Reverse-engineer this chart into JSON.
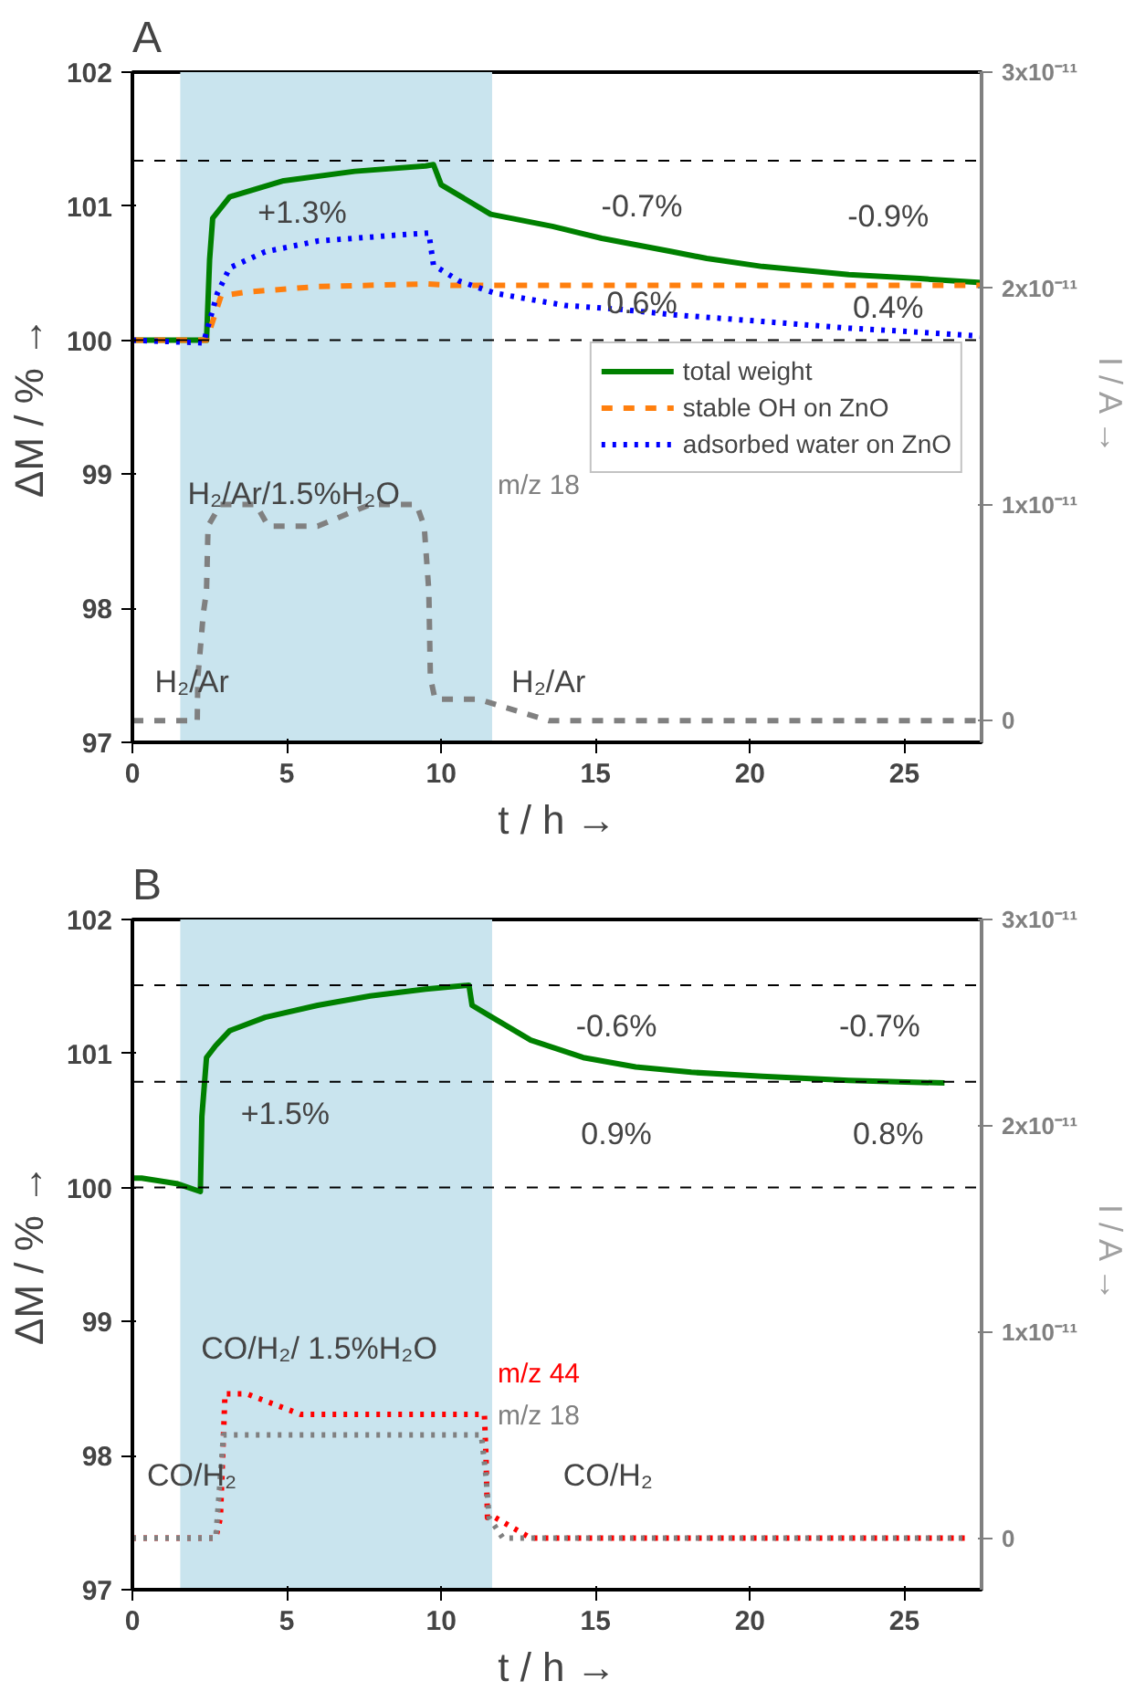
{
  "chart_data": [
    {
      "type": "line",
      "title": "A",
      "xlabel": "t / h →",
      "ylabel": "ΔM / % →",
      "y2label": "I / A →",
      "xlim": [
        0,
        27.5
      ],
      "xticks": [
        0,
        5,
        10,
        15,
        20,
        25
      ],
      "ylim": [
        97,
        102
      ],
      "yticks": [
        97,
        98,
        99,
        100,
        101,
        102
      ],
      "y2lim": [
        -1e-12,
        3e-11
      ],
      "y2ticks": [
        {
          "value": 0,
          "label": "0"
        },
        {
          "value": 1e-11,
          "label": "1x10⁻¹¹"
        },
        {
          "value": 2e-11,
          "label": "2x10⁻¹¹"
        },
        {
          "value": 3e-11,
          "label": "3x10⁻¹¹"
        }
      ],
      "grid": false,
      "legend": "right",
      "bands": [
        {
          "axis": "x",
          "from": 1.55,
          "to": 11.65,
          "label": null,
          "color": "#c9e4ee"
        }
      ],
      "ref_lines": [
        {
          "axis": "y",
          "value": 101.34,
          "label": null,
          "color": "#000000",
          "line_style": "dashed"
        },
        {
          "axis": "y",
          "value": 100.0,
          "label": null,
          "color": "#000000",
          "line_style": "dashed"
        }
      ],
      "series": [
        {
          "name": "total weight",
          "color": "#008000",
          "line_style": "solid",
          "x": [
            0,
            2.4,
            2.5,
            2.6,
            3.15,
            4.9,
            7.2,
            9.5,
            9.75,
            10.0,
            11.6,
            13.6,
            15.2,
            17.5,
            18.6,
            20.4,
            23.2,
            25.5,
            27.5
          ],
          "values": [
            100.0,
            100.0,
            100.6,
            100.91,
            101.07,
            101.19,
            101.26,
            101.3,
            101.31,
            101.16,
            100.94,
            100.85,
            100.76,
            100.66,
            100.61,
            100.55,
            100.49,
            100.46,
            100.43
          ]
        },
        {
          "name": "stable OH on ZnO",
          "color": "#ff7f0e",
          "line_style": "dashed",
          "x": [
            0,
            2.4,
            2.87,
            3.7,
            6.0,
            9.5,
            10.3,
            27.5
          ],
          "values": [
            100.0,
            100.0,
            100.33,
            100.36,
            100.4,
            100.42,
            100.41,
            100.41
          ]
        },
        {
          "name": "adsorbed water on ZnO",
          "color": "#0000ff",
          "line_style": "dotted",
          "x": [
            0,
            2.3,
            2.75,
            3.15,
            4.3,
            6.0,
            8.9,
            9.6,
            9.75,
            10.6,
            11.75,
            14.0,
            15.8,
            17.5,
            20.4,
            23.2,
            25.5,
            27.5
          ],
          "values": [
            100.0,
            99.98,
            100.35,
            100.54,
            100.66,
            100.74,
            100.79,
            100.8,
            100.56,
            100.44,
            100.35,
            100.26,
            100.23,
            100.19,
            100.14,
            100.09,
            100.06,
            100.03
          ]
        },
        {
          "name": "m/z 18",
          "color": "#808080",
          "line_style": "dashed",
          "axis": "y2",
          "x": [
            0,
            2.1,
            2.12,
            2.3,
            2.4,
            2.45,
            2.85,
            3.7,
            4.0,
            4.4,
            6.0,
            7.7,
            9.2,
            9.45,
            9.6,
            9.65,
            9.8,
            10.15,
            11.2,
            13.5,
            17.5,
            27.5
          ],
          "values": [
            0,
            0,
            2e-12,
            5e-12,
            6e-12,
            9e-12,
            1e-11,
            1e-11,
            1e-11,
            9e-12,
            9e-12,
            1e-11,
            1e-11,
            9e-12,
            6e-12,
            2e-12,
            1e-12,
            1e-12,
            1e-12,
            0,
            0,
            0
          ]
        }
      ],
      "annotations": [
        "+1.3%",
        "-0.7%",
        "-0.9%",
        "0.6%",
        "0.4%",
        "H₂/Ar/1.5%H₂O",
        "H₂/Ar",
        "H₂/Ar"
      ]
    },
    {
      "type": "line",
      "title": "B",
      "xlabel": "t / h →",
      "ylabel": "ΔM / % →",
      "y2label": "I / A →",
      "xlim": [
        0,
        27.5
      ],
      "xticks": [
        0,
        5,
        10,
        15,
        20,
        25
      ],
      "ylim": [
        97,
        102
      ],
      "yticks": [
        97,
        98,
        99,
        100,
        101,
        102
      ],
      "y2lim": [
        -2.5e-12,
        3e-11
      ],
      "y2ticks": [
        {
          "value": 0,
          "label": "0"
        },
        {
          "value": 1e-11,
          "label": "1x10⁻¹¹"
        },
        {
          "value": 2e-11,
          "label": "2x10⁻¹¹"
        },
        {
          "value": 3e-11,
          "label": "3x10⁻¹¹"
        }
      ],
      "grid": false,
      "bands": [
        {
          "axis": "x",
          "from": 1.55,
          "to": 11.65,
          "label": null,
          "color": "#c9e4ee"
        }
      ],
      "ref_lines": [
        {
          "axis": "y",
          "value": 101.51,
          "label": null,
          "color": "#000000",
          "line_style": "dashed"
        },
        {
          "axis": "y",
          "value": 100.79,
          "label": null,
          "color": "#000000",
          "line_style": "dashed"
        },
        {
          "axis": "y",
          "value": 100.0,
          "label": null,
          "color": "#000000",
          "line_style": "dashed"
        }
      ],
      "series": [
        {
          "color": "#008000",
          "line_style": "solid",
          "x": [
            0,
            0.3,
            1.43,
            2.2,
            2.25,
            2.4,
            2.7,
            3.15,
            4.3,
            6.0,
            7.7,
            9.5,
            10.9,
            11.0,
            11.65,
            12.9,
            14.6,
            16.3,
            18.1,
            20.4,
            23.2,
            26.3
          ],
          "values": [
            100.07,
            100.07,
            100.03,
            99.97,
            100.53,
            100.97,
            101.06,
            101.17,
            101.27,
            101.36,
            101.43,
            101.48,
            101.51,
            101.36,
            101.27,
            101.1,
            100.97,
            100.9,
            100.86,
            100.83,
            100.8,
            100.78
          ]
        },
        {
          "name": "m/z 44",
          "color": "#ff0000",
          "line_style": "dotted",
          "axis": "y2",
          "x": [
            0,
            2.7,
            2.85,
            3.0,
            3.15,
            3.3,
            3.7,
            5.45,
            6.5,
            6.9,
            8.3,
            10.6,
            11.4,
            11.45,
            11.5,
            11.75,
            12.9,
            17.5,
            27.1
          ],
          "values": [
            0,
            0,
            1e-12,
            7e-12,
            7e-12,
            7e-12,
            7e-12,
            6e-12,
            6e-12,
            6e-12,
            6e-12,
            6e-12,
            6e-12,
            4e-12,
            1e-12,
            1e-12,
            0,
            0,
            0
          ]
        },
        {
          "name": "m/z 18",
          "color": "#808080",
          "line_style": "dotted",
          "axis": "y2",
          "x": [
            0,
            2.7,
            2.75,
            2.95,
            3.15,
            4.9,
            6.6,
            6.9,
            9.5,
            11.3,
            11.45,
            11.55,
            12.0,
            17.5,
            27.1
          ],
          "values": [
            0,
            0,
            1e-12,
            5e-12,
            5e-12,
            5e-12,
            5e-12,
            5e-12,
            5e-12,
            5e-12,
            3e-12,
            1e-12,
            0,
            0,
            0
          ]
        }
      ],
      "annotations": [
        "+1.5%",
        "-0.6%",
        "-0.7%",
        "0.9%",
        "0.8%",
        "CO/H₂/ 1.5%H₂O",
        "CO/H₂",
        "CO/H₂"
      ]
    }
  ]
}
